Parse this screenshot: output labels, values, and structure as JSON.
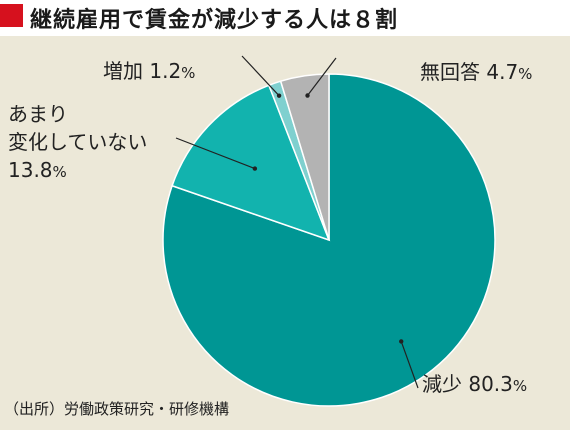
{
  "header": {
    "title": "継続雇用で賃金が減少する人は８割",
    "marker_color": "#d6111e"
  },
  "chart_data": {
    "type": "pie",
    "title": "継続雇用で賃金が減少する人は８割",
    "start": "12 o'clock",
    "direction": "clockwise",
    "slices": [
      {
        "label": "減少",
        "value": 80.3,
        "value_text": "80.3",
        "unit": "%",
        "color": "#009694"
      },
      {
        "label": "あまり変化していない",
        "label_line1": "あまり",
        "label_line2": "変化していない",
        "value": 13.8,
        "value_text": "13.8",
        "unit": "%",
        "color": "#12b3ae"
      },
      {
        "label": "増加",
        "value": 1.2,
        "value_text": "1.2",
        "unit": "%",
        "color": "#7fd0cf"
      },
      {
        "label": "無回答",
        "value": 4.7,
        "value_text": "4.7",
        "unit": "%",
        "color": "#b3b3b3"
      }
    ]
  },
  "source": "（出所）労働政策研究・研修機構",
  "colors": {
    "background": "#ece8d8",
    "slice_border": "#ffffff",
    "leader": "#222222"
  }
}
